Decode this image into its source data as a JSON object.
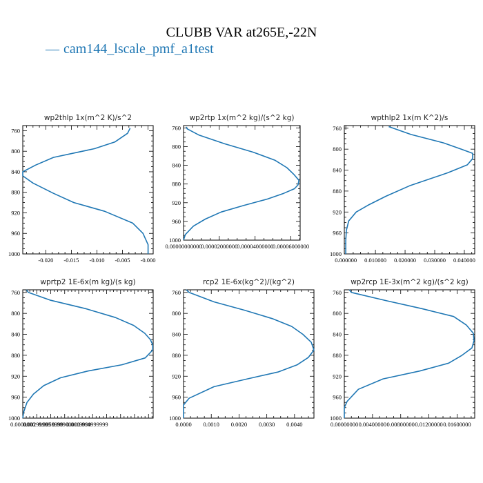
{
  "title": "CLUBB VAR at265E,-22N",
  "legend": {
    "dash": "—",
    "label": "cam144_lscale_pmf_a1test",
    "color": "#1f77b4"
  },
  "chart_data": [
    {
      "type": "line",
      "title": "wp2thlp  1x(m^2 K)/s^2",
      "ylim": [
        1000,
        750
      ],
      "yticks": [
        760,
        800,
        840,
        880,
        920,
        960,
        1000
      ],
      "xlim": [
        -0.0245,
        0.001
      ],
      "xticks": [
        -0.02,
        -0.015,
        -0.01,
        -0.005,
        -0.0
      ],
      "xticklabels": [
        "-0.020",
        "-0.015",
        "-0.010",
        "-0.005",
        "-0.000"
      ],
      "series": [
        {
          "color": "#1f77b4",
          "x": [
            -0.0035,
            -0.004,
            -0.0065,
            -0.0105,
            -0.0185,
            -0.022,
            -0.0245,
            -0.0245,
            -0.0225,
            -0.0185,
            -0.0145,
            -0.0085,
            -0.003,
            -0.001,
            0.0,
            0.0
          ],
          "y": [
            755,
            765,
            782,
            795,
            812,
            827,
            840,
            848,
            862,
            882,
            900,
            917,
            940,
            960,
            982,
            1000
          ]
        }
      ]
    },
    {
      "type": "line",
      "title": "wp2rtp  1x(m^2 kg)/(s^2 kg)",
      "ylim": [
        1000,
        755
      ],
      "yticks": [
        760,
        800,
        840,
        880,
        920,
        960,
        1000
      ],
      "xlim": [
        0.0,
        6.52e-05
      ],
      "xticks": [
        0.0,
        2e-05,
        4e-05,
        6e-05
      ],
      "xticklabels": [
        "0.00000000000",
        "0.00002000000",
        "0.00004000000",
        "0.00006000000"
      ],
      "series": [
        {
          "color": "#1f77b4",
          "x": [
            1.5e-06,
            2e-06,
            8.5e-06,
            2.3e-05,
            3.9e-05,
            5.1e-05,
            5.78e-05,
            6.18e-05,
            6.45e-05,
            6.4e-05,
            6.2e-05,
            5.6e-05,
            4.7e-05,
            3.35e-05,
            2.1e-05,
            1.22e-05,
            5.5e-06,
            1e-06,
            0.0
          ],
          "y": [
            758,
            762,
            775,
            794,
            812,
            829,
            845,
            860,
            872,
            882,
            890,
            900,
            912,
            926,
            940,
            955,
            970,
            988,
            1000
          ]
        }
      ]
    },
    {
      "type": "line",
      "title": "wpthlp2  1x(m K^2)/s",
      "ylim": [
        1000,
        755
      ],
      "yticks": [
        760,
        800,
        840,
        880,
        920,
        960,
        1000
      ],
      "xlim": [
        -0.0005,
        0.0435
      ],
      "xticks": [
        0.0,
        0.01,
        0.02,
        0.03,
        0.04
      ],
      "xticklabels": [
        "0.000000",
        "0.010000",
        "0.020000",
        "0.030000",
        "0.040000"
      ],
      "series": [
        {
          "color": "#1f77b4",
          "x": [
            0.0145,
            0.022,
            0.033,
            0.039,
            0.0428,
            0.0428,
            0.041,
            0.0345,
            0.0215,
            0.0135,
            0.0075,
            0.0035,
            0.001,
            0.0002,
            0.0,
            0.0
          ],
          "y": [
            757,
            772,
            788,
            800,
            808,
            818,
            830,
            845,
            870,
            890,
            907,
            920,
            937,
            955,
            975,
            1000
          ]
        }
      ]
    },
    {
      "type": "line",
      "title": "wprtp2  1E-6x(m kg)/(s kg)",
      "ylim": [
        1000,
        755
      ],
      "yticks": [
        760,
        800,
        840,
        880,
        920,
        960,
        1000
      ],
      "xlim": [
        0.0,
        2.8e-05
      ],
      "xticks": [
        0.0,
        3e-06,
        6e-06,
        9e-06,
        1.2e-05,
        1.5e-05
      ],
      "xticklabels": [
        "0.0000000",
        "0.00299999",
        "0.0059999",
        "0.0090000",
        "0.0119999",
        "0.014999999"
      ],
      "series": [
        {
          "color": "#1f77b4",
          "x": [
            8e-07,
            1.2e-06,
            6e-06,
            1.35e-05,
            1.99e-05,
            2.38e-05,
            2.62e-05,
            2.74e-05,
            2.79e-05,
            2.79e-05,
            2.63e-05,
            2.13e-05,
            1.4e-05,
            8.1e-06,
            4.5e-06,
            2.3e-06,
            9e-07,
            2e-07,
            0.0
          ],
          "y": [
            755,
            760,
            775,
            791,
            808,
            823,
            838,
            850,
            860,
            870,
            885,
            898,
            910,
            923,
            938,
            954,
            970,
            988,
            1000
          ]
        }
      ]
    },
    {
      "type": "line",
      "title": "rcp2  1E-6x(kg^2)/(kg^2)",
      "ylim": [
        1000,
        755
      ],
      "yticks": [
        760,
        800,
        840,
        880,
        920,
        960,
        1000
      ],
      "xlim": [
        0.0,
        0.0047
      ],
      "xticks": [
        0.0,
        0.001,
        0.002,
        0.003,
        0.004
      ],
      "xticklabels": [
        "0.0000",
        "0.0010",
        "0.0020",
        "0.0030",
        "0.0040"
      ],
      "series": [
        {
          "color": "#1f77b4",
          "x": [
            0.0001,
            0.0002,
            0.0011,
            0.0022,
            0.0032,
            0.0039,
            0.0043,
            0.0046,
            0.0047,
            0.0045,
            0.0041,
            0.0034,
            0.0023,
            0.0011,
            0.0002,
            0.0,
            0.0
          ],
          "y": [
            755,
            760,
            778,
            794,
            810,
            825,
            840,
            855,
            870,
            884,
            898,
            912,
            925,
            940,
            962,
            975,
            1000
          ]
        }
      ]
    },
    {
      "type": "line",
      "title": "wp2rcp  1E-3x(m^2 kg)/(s^2 kg)",
      "ylim": [
        1000,
        755
      ],
      "yticks": [
        760,
        800,
        840,
        880,
        920,
        960,
        1000
      ],
      "xlim": [
        0.0,
        0.0185
      ],
      "xticks": [
        0.0,
        0.004,
        0.008,
        0.012,
        0.016
      ],
      "xticklabels": [
        "0.00000000",
        "0.00400000",
        "0.00800000",
        "0.01200000",
        "0.01600000"
      ],
      "series": [
        {
          "color": "#1f77b4",
          "x": [
            0.0007,
            0.001,
            0.006,
            0.011,
            0.0155,
            0.0173,
            0.0183,
            0.0184,
            0.0181,
            0.0167,
            0.0148,
            0.0107,
            0.0055,
            0.002,
            0.0004,
            0.0,
            0.0
          ],
          "y": [
            755,
            760,
            776,
            791,
            806,
            822,
            838,
            852,
            866,
            880,
            895,
            910,
            925,
            945,
            968,
            980,
            1000
          ]
        }
      ]
    }
  ]
}
